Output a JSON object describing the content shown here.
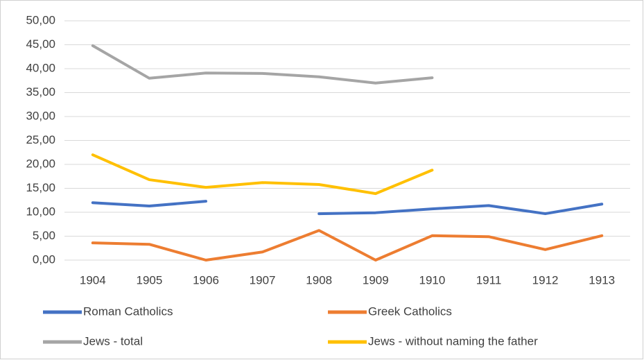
{
  "chart_data": {
    "type": "line",
    "categories": [
      "1904",
      "1905",
      "1906",
      "1907",
      "1908",
      "1909",
      "1910",
      "1911",
      "1912",
      "1913"
    ],
    "series": [
      {
        "name": "Roman Catholics",
        "color": "#4472c4",
        "values": [
          12.0,
          11.3,
          12.3,
          null,
          9.7,
          9.9,
          10.7,
          11.4,
          9.7,
          11.7
        ]
      },
      {
        "name": "Greek Catholics",
        "color": "#ed7d31",
        "values": [
          3.6,
          3.3,
          0,
          1.7,
          6.2,
          0,
          5.1,
          4.9,
          2.2,
          5.1
        ]
      },
      {
        "name": "Jews - total",
        "color": "#a5a5a5",
        "values": [
          44.8,
          38.0,
          39.1,
          39.0,
          38.3,
          37.0,
          38.1,
          null,
          null,
          null
        ]
      },
      {
        "name": "Jews - without naming the father",
        "color": "#ffc000",
        "values": [
          22.0,
          16.8,
          15.2,
          16.2,
          15.8,
          13.9,
          18.8,
          null,
          null,
          null
        ]
      }
    ],
    "ylim": [
      0,
      50
    ],
    "yticks": [
      {
        "value": 0,
        "label": "0,00"
      },
      {
        "value": 5,
        "label": "5,00"
      },
      {
        "value": 10,
        "label": "10,00"
      },
      {
        "value": 15,
        "label": "15,00"
      },
      {
        "value": 20,
        "label": "20,00"
      },
      {
        "value": 25,
        "label": "25,00"
      },
      {
        "value": 30,
        "label": "30,00"
      },
      {
        "value": 35,
        "label": "35,00"
      },
      {
        "value": 40,
        "label": "40,00"
      },
      {
        "value": 45,
        "label": "45,00"
      },
      {
        "value": 50,
        "label": "50,00"
      }
    ],
    "grid": true,
    "legend": "bottom"
  }
}
